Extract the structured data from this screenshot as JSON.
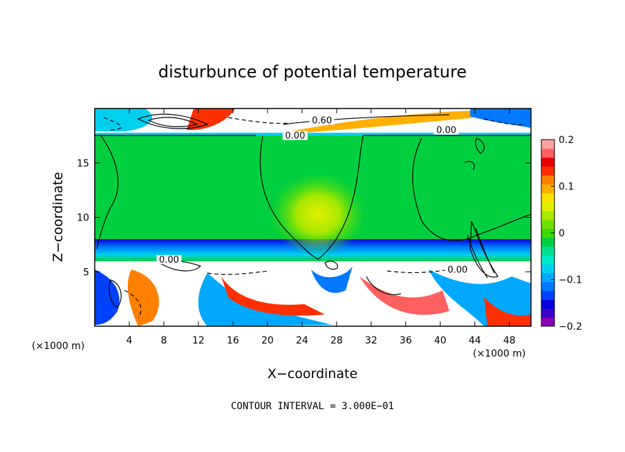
{
  "chart_data": {
    "type": "heatmap",
    "title": "disturbunce of potential temperature",
    "xlabel": "X−coordinate",
    "ylabel": "Z−coordinate",
    "x_unit_left": "(×1000 m)",
    "x_unit_right": "(×1000 m)",
    "xlim": [
      0,
      50.5
    ],
    "ylim": [
      0,
      20
    ],
    "x_ticks": [
      4,
      8,
      12,
      16,
      20,
      24,
      28,
      32,
      36,
      40,
      44,
      48
    ],
    "x_tick_labels": [
      "4",
      "8",
      "12",
      "16",
      "20",
      "24",
      "28",
      "32",
      "36",
      "40",
      "44",
      "48"
    ],
    "y_ticks": [
      5,
      10,
      15
    ],
    "y_tick_labels": [
      "5",
      "10",
      "15"
    ],
    "colorbar": {
      "range": [
        -0.2,
        0.2
      ],
      "ticks": [
        0.2,
        0.1,
        0,
        -0.1,
        -0.2
      ],
      "tick_labels": [
        "0.2",
        "0.1",
        "0",
        "−0.1",
        "−0.2"
      ],
      "colors": [
        "#8b00b0",
        "#3c00c8",
        "#0000dc",
        "#0040ff",
        "#0078ff",
        "#00a8ff",
        "#00d0f0",
        "#00e8c8",
        "#00e090",
        "#00d040",
        "#3cd800",
        "#70e000",
        "#a8e800",
        "#e0f000",
        "#ffe000",
        "#ffb000",
        "#ff8000",
        "#ff3000",
        "#e80000",
        "#ff6060",
        "#ffa0a0"
      ]
    },
    "contour_labels": [
      {
        "text": "0.60",
        "x": 26.3,
        "y": 18.7
      },
      {
        "text": "0.00",
        "x": 23.2,
        "y": 17.3
      },
      {
        "text": "0.00",
        "x": 40.7,
        "y": 17.8
      },
      {
        "text": "0.00",
        "x": 42.0,
        "y": 5.0
      },
      {
        "text": "0.00",
        "x": 8.6,
        "y": 5.9
      }
    ],
    "contour_interval_text": "CONTOUR INTERVAL = 3.000E−01"
  }
}
